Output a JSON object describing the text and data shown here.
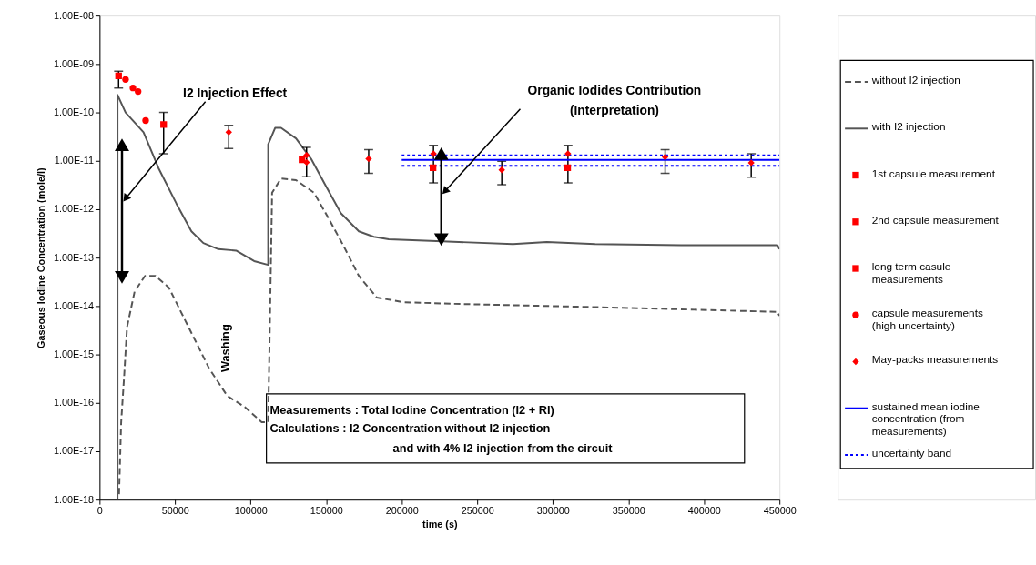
{
  "chart_data": {
    "type": "line",
    "xlabel": "time (s)",
    "ylabel": "Gaseous Iodine Concentration (mole/l)",
    "log": "y",
    "grid": false,
    "legend": "right",
    "xlim": [
      0,
      450000
    ],
    "xticks": [
      0,
      50000,
      100000,
      150000,
      200000,
      250000,
      300000,
      350000,
      400000,
      450000
    ],
    "ylim": [
      1e-18,
      1e-08
    ],
    "yticks": [
      {
        "value": 1e-18,
        "label": "1.00E-18"
      },
      {
        "value": 1e-17,
        "label": "1.00E-17"
      },
      {
        "value": 1e-16,
        "label": "1.00E-16"
      },
      {
        "value": 1e-15,
        "label": "1.00E-15"
      },
      {
        "value": 1e-14,
        "label": "1.00E-14"
      },
      {
        "value": 1e-13,
        "label": "1.00E-13"
      },
      {
        "value": 1e-12,
        "label": "1.00E-12"
      },
      {
        "value": 1e-11,
        "label": "1.00E-11"
      },
      {
        "value": 1e-10,
        "label": "1.00E-10"
      },
      {
        "value": 1e-09,
        "label": "1.00E-09"
      },
      {
        "value": 1e-08,
        "label": "1.00E-08"
      }
    ],
    "series": [
      {
        "name": "without I2 injection",
        "color": "#555555",
        "line_style": "dashed",
        "x": [
          12900,
          14300,
          16200,
          18200,
          23200,
          30100,
          37000,
          45900,
          52900,
          62800,
          72600,
          84500,
          96400,
          107300,
          111600,
          114200,
          120100,
          130000,
          141900,
          151800,
          161700,
          171600,
          183500,
          201300,
          240900,
          330000,
          448700,
          450000
        ],
        "values": [
          1.3e-18,
          4e-17,
          3.3e-16,
          3.7e-15,
          2e-14,
          4.2e-14,
          4.2e-14,
          2.4e-14,
          8.7e-15,
          2.1e-15,
          5.1e-16,
          1.4e-16,
          8.1e-17,
          4e-17,
          4e-17,
          2.2e-12,
          4.3e-12,
          4e-12,
          2.2e-12,
          6.3e-13,
          1.7e-13,
          4.2e-14,
          1.5e-14,
          1.2e-14,
          1.1e-14,
          9.5e-15,
          7.6e-15,
          6.3e-15
        ]
      },
      {
        "name": "with I2 injection",
        "color": "#555555",
        "line_style": "solid",
        "x": [
          11900,
          11900,
          17200,
          29100,
          39000,
          50900,
          60800,
          68700,
          78600,
          90400,
          102300,
          111600,
          111600,
          116200,
          120100,
          130000,
          140000,
          149800,
          159700,
          171600,
          181500,
          191400,
          223000,
          273600,
          296000,
          328000,
          385000,
          448700,
          450000
        ],
        "values": [
          1e-18,
          2.3e-10,
          1e-10,
          3.9e-11,
          7.1e-12,
          1.3e-12,
          3.5e-13,
          2e-13,
          1.5e-13,
          1.4e-13,
          8.5e-14,
          7.1e-14,
          2.2e-11,
          4.8e-11,
          4.8e-11,
          2.9e-11,
          1.1e-11,
          3e-12,
          8.3e-13,
          3.5e-13,
          2.7e-13,
          2.4e-13,
          2.2e-13,
          1.9e-13,
          2.1e-13,
          1.9e-13,
          1.8e-13,
          1.8e-13,
          1.5e-13
        ]
      },
      {
        "name": "1st capsule measurement",
        "type": "scatter",
        "color": "#ff0000",
        "marker": "square",
        "x": [
          12600
        ],
        "values": [
          5.7e-10
        ],
        "errors": [
          [
            3.2e-10,
            7.1e-10
          ]
        ]
      },
      {
        "name": "2nd capsule measurement",
        "type": "scatter",
        "color": "#ff0000",
        "marker": "square",
        "x": [
          42400
        ],
        "values": [
          5.6e-11
        ],
        "errors": [
          [
            1.4e-11,
            1e-10
          ]
        ]
      },
      {
        "name": "long term casule measurements",
        "type": "scatter",
        "color": "#ff0000",
        "marker": "square",
        "x": [
          134000,
          220700,
          309800
        ],
        "values": [
          1.05e-11,
          7.2e-12,
          7.2e-12
        ]
      },
      {
        "name": "capsule measurements (high uncertainty)",
        "type": "scatter",
        "color": "#ff0000",
        "marker": "circle",
        "x": [
          17200,
          22100,
          25500,
          30500
        ],
        "values": [
          4.8e-10,
          3.2e-10,
          2.7e-10,
          6.8e-11
        ]
      },
      {
        "name": "May-packs measurements",
        "type": "scatter",
        "color": "#ff0000",
        "marker": "diamond",
        "x": [
          85500,
          137000,
          137000,
          178100,
          221000,
          266200,
          310000,
          374300,
          431300
        ],
        "values": [
          3.9e-11,
          1.3e-11,
          9.3e-12,
          1.1e-11,
          1.4e-11,
          6.5e-12,
          1.4e-11,
          1.2e-11,
          9.1e-12
        ],
        "errors": [
          [
            1.8e-11,
            5.4e-11
          ],
          [
            4.7e-12,
            1.9e-11
          ],
          null,
          [
            5.5e-12,
            1.7e-11
          ],
          [
            3.5e-12,
            2.1e-11
          ],
          [
            3.2e-12,
            9.8e-12
          ],
          [
            3.5e-12,
            2.1e-11
          ],
          [
            5.5e-12,
            1.7e-11
          ],
          [
            4.6e-12,
            1.4e-11
          ]
        ]
      },
      {
        "name": "sustained mean iodine concentration (from measurements)",
        "color": "#0000ff",
        "line_style": "solid",
        "x": [
          200000,
          450000
        ],
        "values": [
          1.05e-11,
          1.05e-11
        ]
      },
      {
        "name": "uncertainty band",
        "color": "#0000ff",
        "line_style": "dotted",
        "x": [
          200000,
          450000
        ],
        "values": [
          1.3e-11,
          1.3e-11
        ]
      },
      {
        "color": "#0000ff",
        "line_style": "dotted",
        "x": [
          200000,
          450000
        ],
        "values": [
          7.9e-12,
          7.9e-12
        ]
      }
    ],
    "annotations": [
      "I2 Injection Effect",
      "Organic Iodides Contribution",
      "(Interpretation)",
      "Washing",
      "Measurements : Total Iodine Concentration (I2 + RI)",
      "Calculations : I2 Concentration without I2 injection",
      "and with 4% I2 injection from the circuit"
    ]
  }
}
